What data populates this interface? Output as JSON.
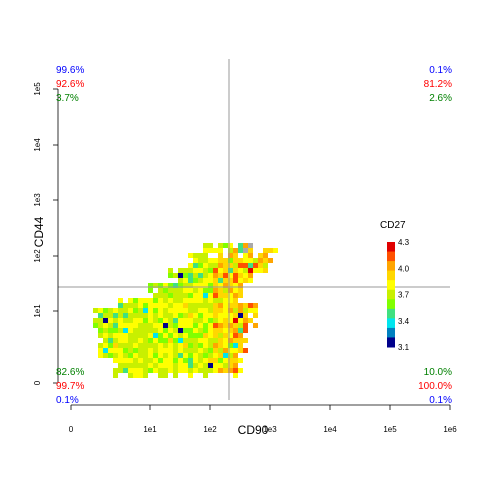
{
  "chart_data": {
    "type": "heatmap",
    "xlabel": "CD90",
    "ylabel": "CD44",
    "x_scale": "biexponential",
    "y_scale": "biexponential",
    "x_ticks": [
      "0",
      "1e1",
      "1e2",
      "1e3",
      "1e4",
      "1e5",
      "1e6"
    ],
    "y_ticks": [
      "0",
      "1e1",
      "1e2",
      "1e3",
      "1e4",
      "1e5"
    ],
    "x_gate": "2e2",
    "y_gate": "2.5e1",
    "grid": false,
    "colorbar": {
      "title": "CD27",
      "position": "right",
      "ticks": [
        "4.3",
        "4.0",
        "3.7",
        "3.4",
        "3.1"
      ],
      "range": [
        3.1,
        4.3
      ],
      "colors": [
        "#00008B",
        "#0080C0",
        "#00E5EE",
        "#40E080",
        "#80FF00",
        "#C8F000",
        "#FFFF00",
        "#FFD700",
        "#FFA500",
        "#FF5000",
        "#E00000"
      ]
    },
    "quadrant_labels": {
      "top_left": [
        {
          "text": "99.6%",
          "color": "#0000FF"
        },
        {
          "text": "92.6%",
          "color": "#FF0000"
        },
        {
          "text": "3.7%",
          "color": "#008000"
        }
      ],
      "top_right": [
        {
          "text": "0.1%",
          "color": "#0000FF"
        },
        {
          "text": "81.2%",
          "color": "#FF0000"
        },
        {
          "text": "2.6%",
          "color": "#008000"
        }
      ],
      "bottom_left": [
        {
          "text": "82.6%",
          "color": "#008000"
        },
        {
          "text": "99.7%",
          "color": "#FF0000"
        },
        {
          "text": "0.1%",
          "color": "#0000FF"
        }
      ],
      "bottom_right": [
        {
          "text": "10.0%",
          "color": "#008000"
        },
        {
          "text": "100.0%",
          "color": "#FF0000"
        },
        {
          "text": "0.1%",
          "color": "#0000FF"
        }
      ]
    }
  }
}
